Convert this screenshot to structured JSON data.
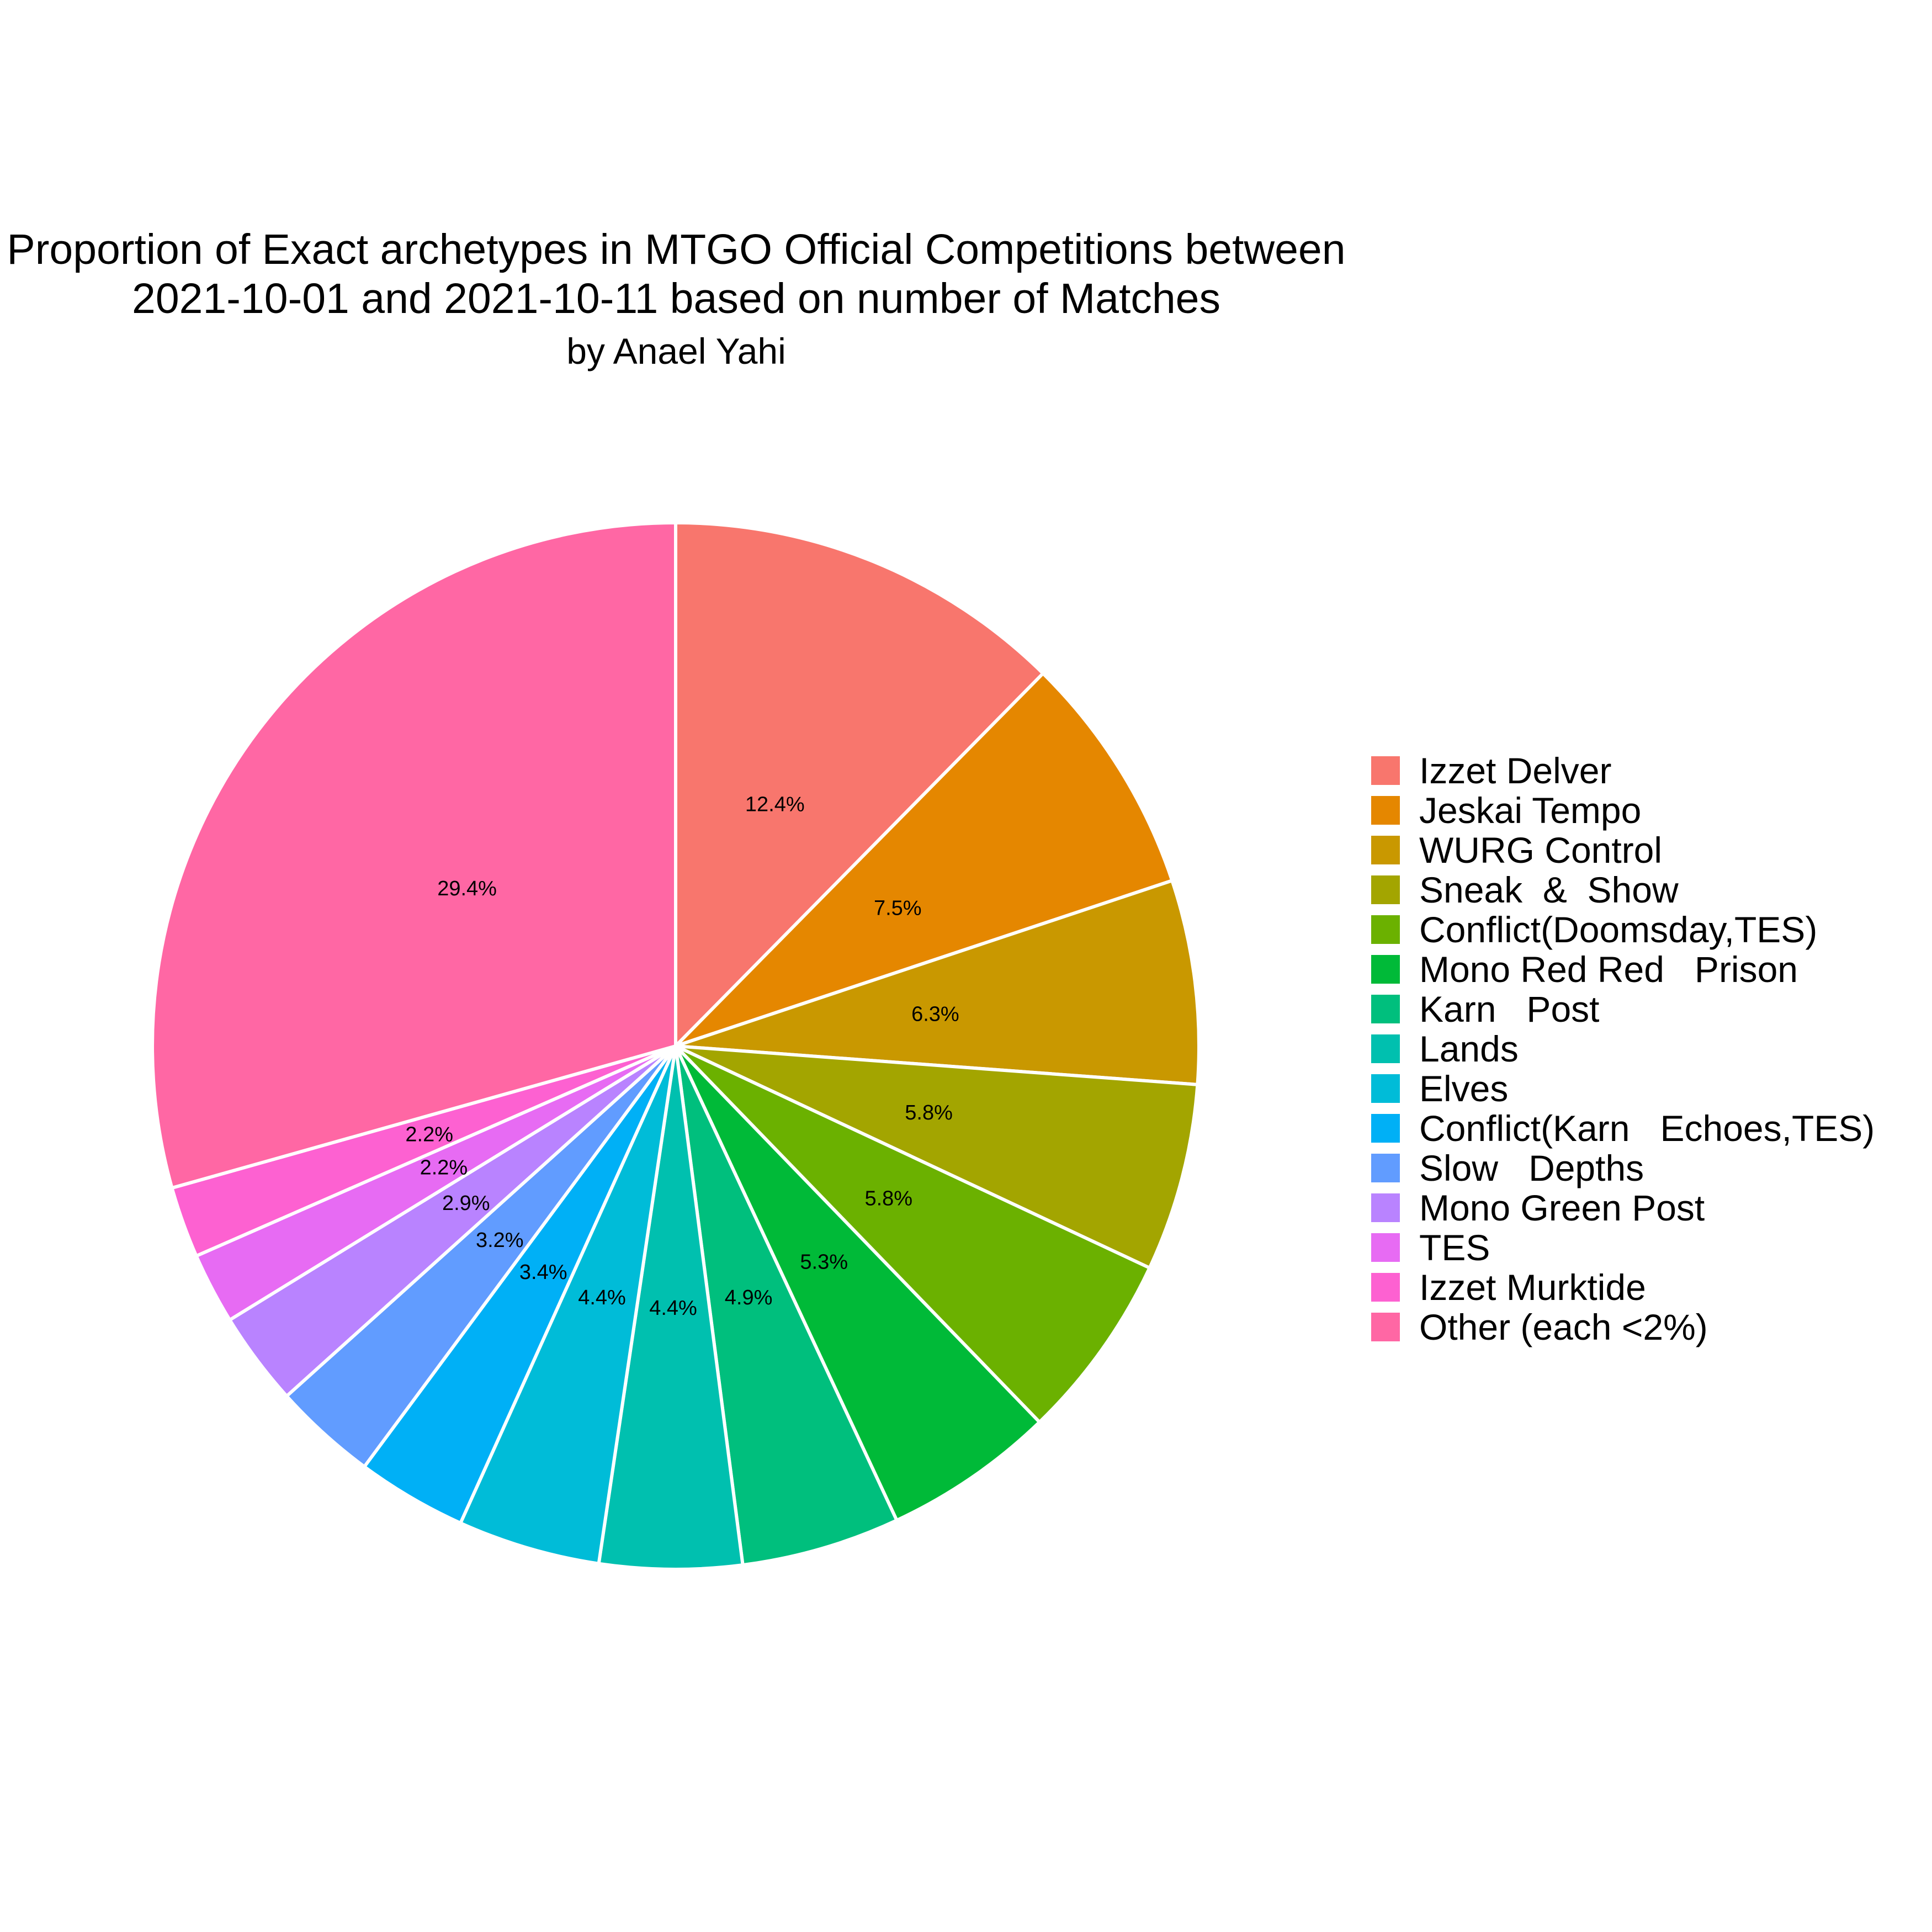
{
  "chart_data": {
    "type": "pie",
    "title_line1": "Proportion of Exact archetypes in MTGO Official Competitions between",
    "title_line2": "2021-10-01 and 2021-10-11 based on number of Matches",
    "subtitle": "by Anael Yahi",
    "direction": "clockwise",
    "start": "12 o'clock",
    "legend_position": "right",
    "slices": [
      {
        "name": "Izzet Delver",
        "value": 12.4,
        "label": "12.4%",
        "color": "#F8766D"
      },
      {
        "name": "Jeskai Tempo",
        "value": 7.5,
        "label": "7.5%",
        "color": "#E58700"
      },
      {
        "name": "WURG Control",
        "value": 6.3,
        "label": "6.3%",
        "color": "#C99800"
      },
      {
        "name": "Sneak  &  Show",
        "value": 5.8,
        "label": "5.8%",
        "color": "#A3A500"
      },
      {
        "name": "Conflict(Doomsday,TES)",
        "value": 5.8,
        "label": "5.8%",
        "color": "#6BB100"
      },
      {
        "name": "Mono Red Red   Prison",
        "value": 5.3,
        "label": "5.3%",
        "color": "#00BA38"
      },
      {
        "name": "Karn   Post",
        "value": 4.9,
        "label": "4.9%",
        "color": "#00BF7D"
      },
      {
        "name": "Lands",
        "value": 4.4,
        "label": "4.4%",
        "color": "#00C0AF"
      },
      {
        "name": "Elves",
        "value": 4.4,
        "label": "4.4%",
        "color": "#00BCD8"
      },
      {
        "name": "Conflict(Karn   Echoes,TES)",
        "value": 3.4,
        "label": "3.4%",
        "color": "#00B0F6"
      },
      {
        "name": "Slow   Depths",
        "value": 3.2,
        "label": "3.2%",
        "color": "#619CFF"
      },
      {
        "name": "Mono Green Post",
        "value": 2.9,
        "label": "2.9%",
        "color": "#B983FF"
      },
      {
        "name": "TES",
        "value": 2.2,
        "label": "2.2%",
        "color": "#E76BF3"
      },
      {
        "name": "Izzet Murktide",
        "value": 2.2,
        "label": "2.2%",
        "color": "#FD61D1"
      },
      {
        "name": "Other (each <2%)",
        "value": 29.4,
        "label": "29.4%",
        "color": "#FF67A4"
      }
    ]
  }
}
